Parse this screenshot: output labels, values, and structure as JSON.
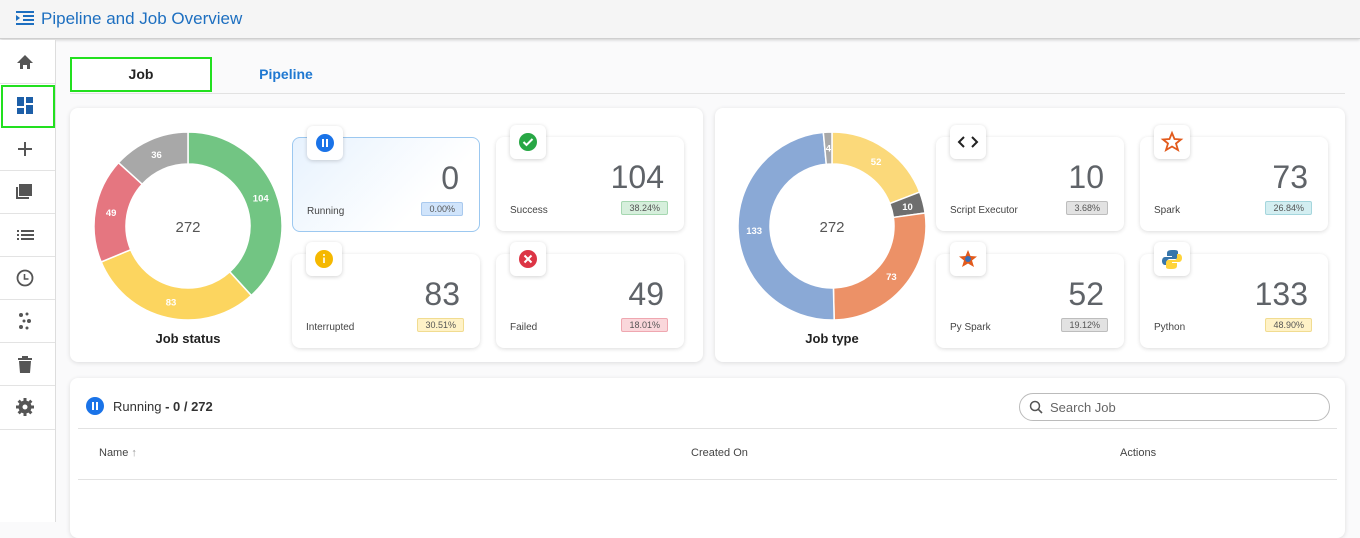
{
  "header": {
    "title": "Pipeline and Job Overview"
  },
  "tabs": [
    "Job",
    "Pipeline"
  ],
  "job_status_chart": {
    "type": "donut",
    "title": "Job status",
    "center": 272,
    "values": [
      104,
      83,
      49,
      36
    ],
    "colors": [
      "#72c583",
      "#fcd55f",
      "#e57680",
      "#a8a8a8"
    ]
  },
  "job_status_cards": [
    {
      "label": "Running",
      "value": 0,
      "percent": "0.00%"
    },
    {
      "label": "Success",
      "value": 104,
      "percent": "38.24%"
    },
    {
      "label": "Interrupted",
      "value": 83,
      "percent": "30.51%"
    },
    {
      "label": "Failed",
      "value": 49,
      "percent": "18.01%"
    }
  ],
  "job_type_chart": {
    "type": "donut",
    "title": "Job type",
    "center": 272,
    "values": [
      52,
      10,
      73,
      133,
      4
    ],
    "colors": [
      "#fbd97a",
      "#6e6e6e",
      "#ec9167",
      "#8aa9d6",
      "#a8a8a8"
    ]
  },
  "job_type_cards": [
    {
      "label": "Script Executor",
      "value": 10,
      "percent": "3.68%"
    },
    {
      "label": "Spark",
      "value": 73,
      "percent": "26.84%"
    },
    {
      "label": "Py Spark",
      "value": 52,
      "percent": "19.12%"
    },
    {
      "label": "Python",
      "value": 133,
      "percent": "48.90%"
    }
  ],
  "job_list": {
    "status": "Running",
    "summary": "- 0 / 272",
    "search_placeholder": "Search Job",
    "columns": [
      "Name",
      "Created On",
      "Actions"
    ]
  }
}
